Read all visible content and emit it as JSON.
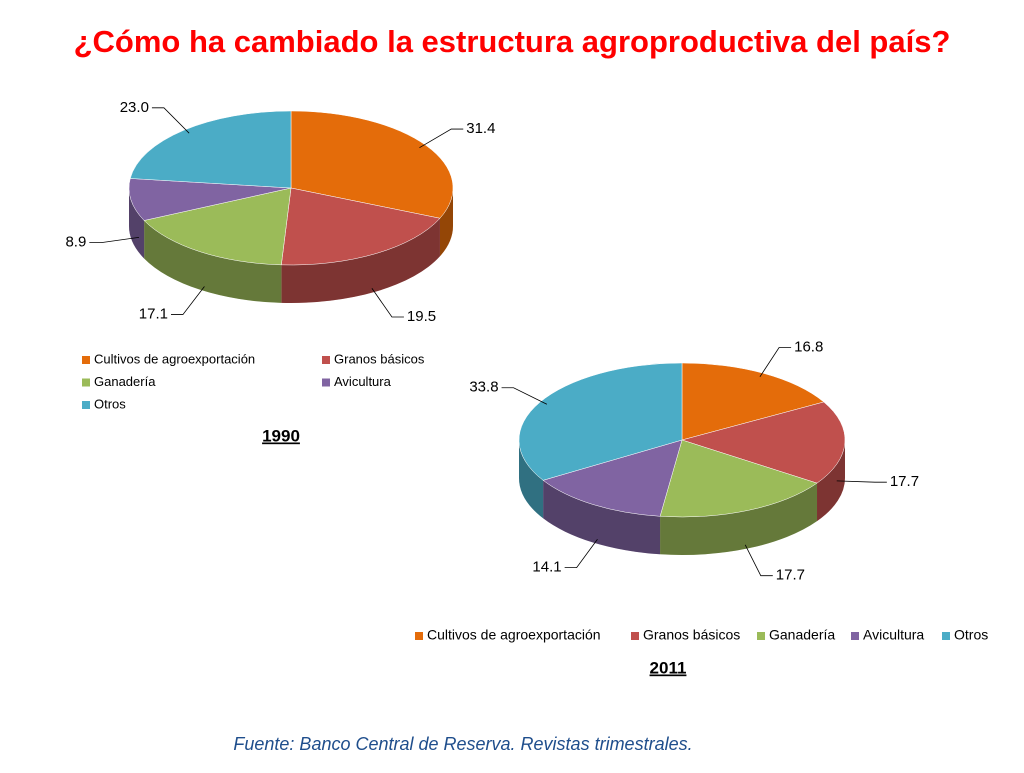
{
  "title": "¿Cómo ha cambiado la estructura agroproductiva del país?",
  "source": "Fuente: Banco Central de Reserva. Revistas trimestrales.",
  "chart_data": [
    {
      "type": "pie",
      "title": "1990",
      "categories": [
        "Cultivos de agroexportación",
        "Granos básicos",
        "Ganadería",
        "Avicultura",
        "Otros"
      ],
      "values": [
        31.4,
        19.5,
        17.1,
        8.9,
        23.0
      ],
      "value_labels": [
        "31.4",
        "19.5",
        "17.1",
        "8.9",
        "23.0"
      ],
      "colors": [
        "#e46c0a",
        "#c0504d",
        "#9bbb59",
        "#8064a2",
        "#4bacc6"
      ],
      "legend": "bottom"
    },
    {
      "type": "pie",
      "title": "2011",
      "categories": [
        "Cultivos de agroexportación",
        "Granos básicos",
        "Ganadería",
        "Avicultura",
        "Otros"
      ],
      "values": [
        16.8,
        17.7,
        17.7,
        14.1,
        33.8
      ],
      "value_labels": [
        "16.8",
        "17.7",
        "17.7",
        "14.1",
        "33.8"
      ],
      "colors": [
        "#e46c0a",
        "#c0504d",
        "#9bbb59",
        "#8064a2",
        "#4bacc6"
      ],
      "legend": "bottom"
    }
  ]
}
